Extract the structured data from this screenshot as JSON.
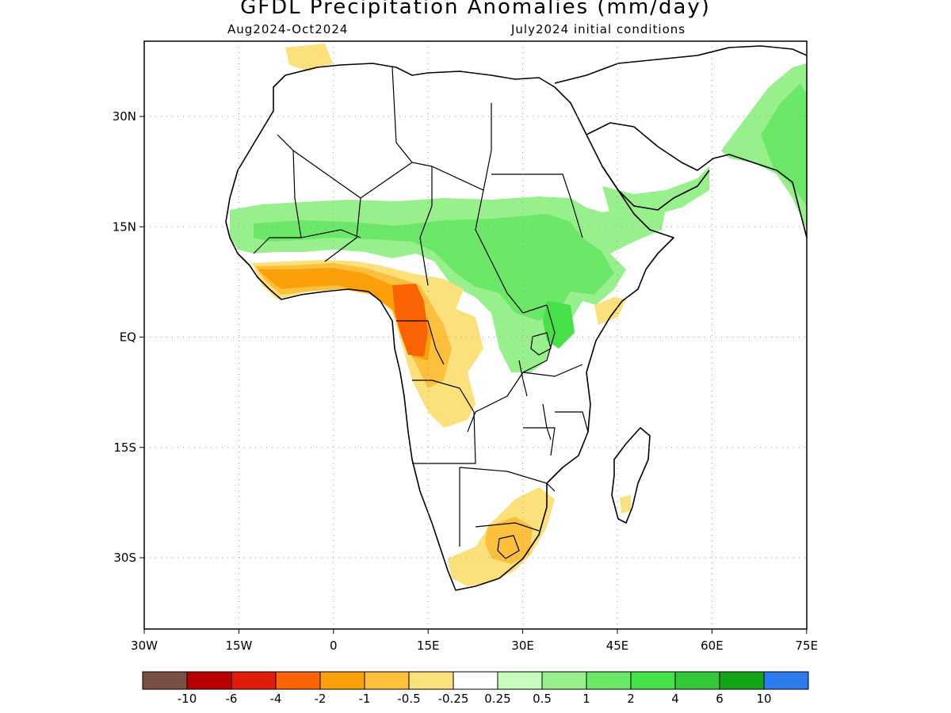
{
  "title": "GFDL Precipitation Anomalies (mm/day)",
  "period": "Aug2024-Oct2024",
  "initial_conditions": "July2024 initial conditions",
  "axes": {
    "lon_ticks": [
      "30W",
      "15W",
      "0",
      "15E",
      "30E",
      "45E",
      "60E",
      "75E"
    ],
    "lat_ticks": [
      "30N",
      "15N",
      "EQ",
      "15S",
      "30S"
    ]
  },
  "colorbar": {
    "colors": [
      "#7a5044",
      "#b80000",
      "#e01c0c",
      "#fa6404",
      "#fca00a",
      "#fcc03c",
      "#fce07c",
      "#ffffff",
      "#c6fcbc",
      "#98f08c",
      "#6ce868",
      "#46e048",
      "#32c83a",
      "#14a418",
      "#2c7cf0"
    ],
    "labels": [
      "-10",
      "-6",
      "-4",
      "-2",
      "-1",
      "-0.5",
      "-0.25",
      "0.25",
      "0.5",
      "1",
      "2",
      "4",
      "6",
      "10"
    ]
  },
  "colors": {
    "land_outline": "#000000",
    "grid": "#999999"
  }
}
